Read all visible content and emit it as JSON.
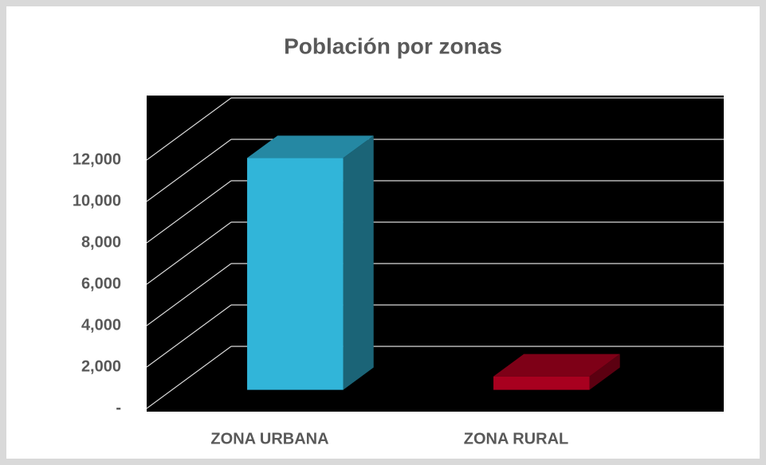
{
  "chart_data": {
    "type": "bar3d",
    "title": "Población por zonas",
    "categories": [
      "ZONA URBANA",
      "ZONA RURAL"
    ],
    "values": [
      11200,
      650
    ],
    "colors": [
      "#31b5d9",
      "#a8001f"
    ],
    "ylim": [
      0,
      12000
    ],
    "yticks": [
      {
        "value": 0,
        "label": "-"
      },
      {
        "value": 2000,
        "label": "2,000"
      },
      {
        "value": 4000,
        "label": "4,000"
      },
      {
        "value": 6000,
        "label": "6,000"
      },
      {
        "value": 8000,
        "label": "8,000"
      },
      {
        "value": 10000,
        "label": "10,000"
      },
      {
        "value": 12000,
        "label": "12,000"
      }
    ],
    "grid": true
  }
}
